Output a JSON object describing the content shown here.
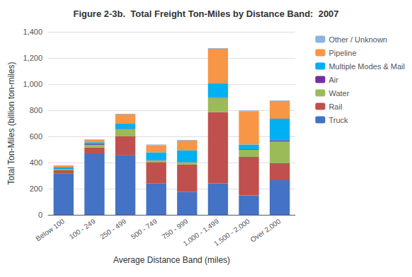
{
  "chart_data": {
    "type": "bar",
    "title": "Figure 2-3b.  Total Freight Ton-Miles by Distance Band:  2007",
    "xlabel": "Average Distance Band (miles)",
    "ylabel": "Total Ton-Miles (billion ton-miles)",
    "categories": [
      "Below 100",
      "100 - 249",
      "250 - 499",
      "500 - 749",
      "750 - 999",
      "1,000 - 1,499",
      "1,500 - 2,000",
      "Over 2,000"
    ],
    "series": [
      {
        "name": "Truck",
        "color": "#4472C4",
        "values": [
          315,
          465,
          455,
          240,
          175,
          240,
          148,
          265
        ]
      },
      {
        "name": "Rail",
        "color": "#C0504D",
        "values": [
          25,
          50,
          145,
          160,
          210,
          545,
          295,
          130
        ]
      },
      {
        "name": "Water",
        "color": "#9BBB59",
        "values": [
          10,
          20,
          55,
          15,
          15,
          110,
          55,
          165
        ]
      },
      {
        "name": "Air",
        "color": "#7030A0",
        "values": [
          2,
          5,
          3,
          3,
          3,
          5,
          5,
          10
        ]
      },
      {
        "name": "Multiple Modes & Mail",
        "color": "#00B0F0",
        "values": [
          10,
          15,
          40,
          60,
          90,
          105,
          35,
          165
        ]
      },
      {
        "name": "Pipeline",
        "color": "#F79646",
        "values": [
          15,
          20,
          70,
          55,
          75,
          265,
          255,
          135
        ]
      },
      {
        "name": "Other / Unknown",
        "color": "#8DB4E2",
        "values": [
          3,
          3,
          5,
          5,
          5,
          5,
          5,
          5
        ]
      }
    ],
    "ylim": [
      0,
      1400
    ],
    "yticks": [
      0,
      200,
      400,
      600,
      800,
      {
        "value": 1000,
        "label": "1,000"
      },
      {
        "value": 1200,
        "label": "1,200"
      },
      {
        "value": 1400,
        "label": "1,400"
      }
    ],
    "stacked": true,
    "grid": true,
    "legend": "right"
  }
}
